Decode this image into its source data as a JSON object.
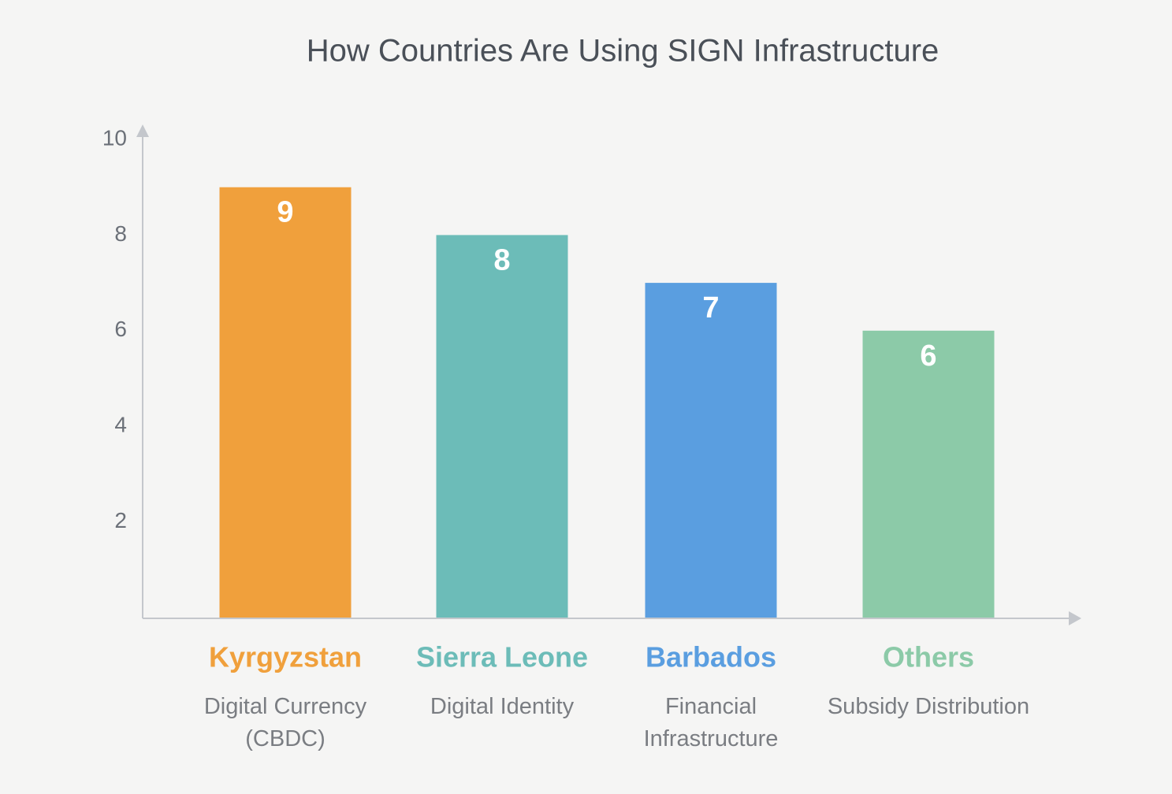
{
  "chart_data": {
    "type": "bar",
    "title": "How Countries Are Using SIGN Infrastructure",
    "categories": [
      "Kyrgyzstan",
      "Sierra Leone",
      "Barbados",
      "Others"
    ],
    "descriptions": [
      "Digital Currency (CBDC)",
      "Digital Identity",
      "Financial Infrastructure",
      "Subsidy Distribution"
    ],
    "values": [
      9,
      8,
      7,
      6
    ],
    "colors": [
      "#f0a03c",
      "#6cbcb8",
      "#5a9ee0",
      "#8ccaa8"
    ],
    "ylim": [
      0,
      10
    ],
    "yticks": [
      2,
      4,
      6,
      8,
      10
    ],
    "grid": false
  }
}
